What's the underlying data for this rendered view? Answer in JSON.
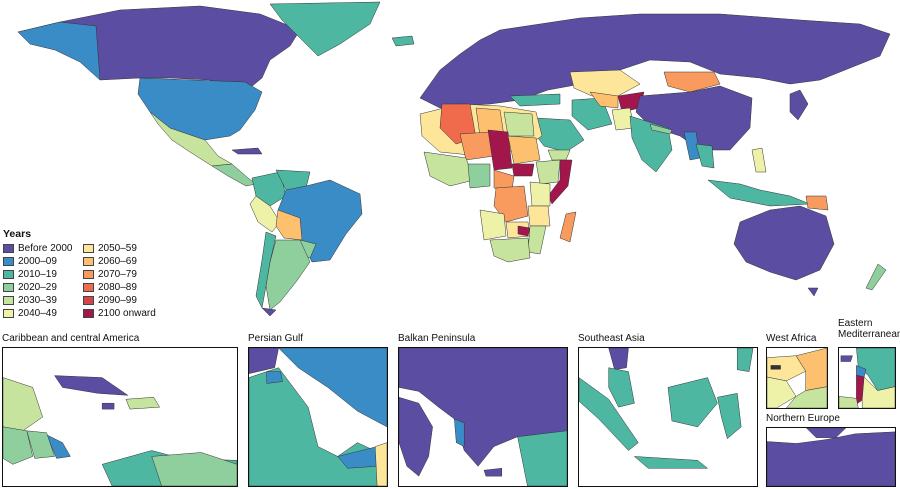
{
  "palette": {
    "before_2000": "#5b4ea2",
    "y2000_09": "#3a8cc7",
    "y2010_19": "#4db7a2",
    "y2020_29": "#8fcf9e",
    "y2030_39": "#c6e49e",
    "y2040_49": "#eef2a9",
    "y2050_59": "#fde59a",
    "y2060_69": "#fdc06f",
    "y2070_79": "#f99a5e",
    "y2080_89": "#ef6b4c",
    "y2090_99": "#d7434c",
    "y2100_onward": "#a3164c",
    "ocean": "#ffffff",
    "border": "#333333"
  },
  "legend": {
    "title": "Years",
    "items": [
      {
        "label": "Before 2000",
        "color": "#5b4ea2"
      },
      {
        "label": "2000–09",
        "color": "#3a8cc7"
      },
      {
        "label": "2010–19",
        "color": "#4db7a2"
      },
      {
        "label": "2020–29",
        "color": "#8fcf9e"
      },
      {
        "label": "2030–39",
        "color": "#c6e49e"
      },
      {
        "label": "2040–49",
        "color": "#eef2a9"
      },
      {
        "label": "2050–59",
        "color": "#fde59a"
      },
      {
        "label": "2060–69",
        "color": "#fdc06f"
      },
      {
        "label": "2070–79",
        "color": "#f99a5e"
      },
      {
        "label": "2080–89",
        "color": "#ef6b4c"
      },
      {
        "label": "2090–99",
        "color": "#d7434c"
      },
      {
        "label": "2100 onward",
        "color": "#a3164c"
      }
    ]
  },
  "insets": {
    "caribbean": "Caribbean and central America",
    "persian_gulf": "Persian Gulf",
    "balkan": "Balkan Peninsula",
    "southeast_asia": "Southeast Asia",
    "west_africa": "West Africa",
    "eastern_med_line1": "Eastern",
    "eastern_med_line2": "Mediterranean",
    "northern_europe": "Northern Europe"
  }
}
